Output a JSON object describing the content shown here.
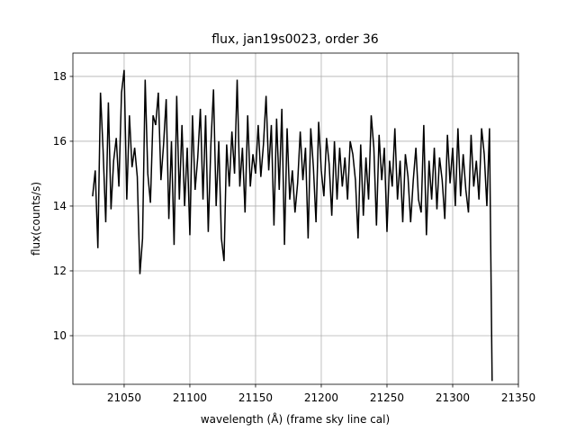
{
  "chart_data": {
    "type": "line",
    "title": "flux, jan19s0023, order 36",
    "xlabel": "wavelength (Å) (frame sky line cal)",
    "ylabel": "flux(counts/s)",
    "color": "#000000",
    "grid": true,
    "xlim": [
      21011,
      21350
    ],
    "ylim": [
      8.5,
      18.72
    ],
    "xticks": [
      21050,
      21100,
      21150,
      21200,
      21250,
      21300,
      21350
    ],
    "yticks": [
      10,
      12,
      14,
      16,
      18
    ],
    "x": [
      21026,
      21028,
      21030,
      21032,
      21034,
      21036,
      21038,
      21040,
      21042,
      21044,
      21046,
      21048,
      21050,
      21052,
      21054,
      21056,
      21058,
      21060,
      21062,
      21064,
      21066,
      21068,
      21070,
      21072,
      21074,
      21076,
      21078,
      21080,
      21082,
      21084,
      21086,
      21088,
      21090,
      21092,
      21094,
      21096,
      21098,
      21100,
      21102,
      21104,
      21106,
      21108,
      21110,
      21112,
      21114,
      21116,
      21118,
      21120,
      21122,
      21124,
      21126,
      21128,
      21130,
      21132,
      21134,
      21136,
      21138,
      21140,
      21142,
      21144,
      21146,
      21148,
      21150,
      21152,
      21154,
      21156,
      21158,
      21160,
      21162,
      21164,
      21166,
      21168,
      21170,
      21172,
      21174,
      21176,
      21178,
      21180,
      21182,
      21184,
      21186,
      21188,
      21190,
      21192,
      21194,
      21196,
      21198,
      21200,
      21202,
      21204,
      21206,
      21208,
      21210,
      21212,
      21214,
      21216,
      21218,
      21220,
      21222,
      21224,
      21226,
      21228,
      21230,
      21232,
      21234,
      21236,
      21238,
      21240,
      21242,
      21244,
      21246,
      21248,
      21250,
      21252,
      21254,
      21256,
      21258,
      21260,
      21262,
      21264,
      21266,
      21268,
      21270,
      21272,
      21274,
      21276,
      21278,
      21280,
      21282,
      21284,
      21286,
      21288,
      21290,
      21292,
      21294,
      21296,
      21298,
      21300,
      21302,
      21304,
      21306,
      21308,
      21310,
      21312,
      21314,
      21316,
      21318,
      21320,
      21322,
      21324,
      21326,
      21328,
      21330
    ],
    "values": [
      14.3,
      15.1,
      12.7,
      17.5,
      15.7,
      13.5,
      17.2,
      13.9,
      15.4,
      16.1,
      14.6,
      17.5,
      18.2,
      14.2,
      16.8,
      15.2,
      15.8,
      14.9,
      11.9,
      13.0,
      17.9,
      15.0,
      14.1,
      16.8,
      16.5,
      17.5,
      14.8,
      15.9,
      17.3,
      13.6,
      16.0,
      12.8,
      17.4,
      14.2,
      16.5,
      14.0,
      15.8,
      13.1,
      16.8,
      14.5,
      15.5,
      17.0,
      14.2,
      16.8,
      13.2,
      15.9,
      17.6,
      14.0,
      16.0,
      13.0,
      12.3,
      15.9,
      14.6,
      16.3,
      15.0,
      17.9,
      14.6,
      15.8,
      13.8,
      16.8,
      14.6,
      15.6,
      15.0,
      16.5,
      14.9,
      15.9,
      17.4,
      15.1,
      16.5,
      13.4,
      16.7,
      14.5,
      17.0,
      12.8,
      16.4,
      14.2,
      15.1,
      13.8,
      14.7,
      16.3,
      14.8,
      15.8,
      13.0,
      16.4,
      15.2,
      13.5,
      16.6,
      15.1,
      14.3,
      16.1,
      15.3,
      13.7,
      16.0,
      14.2,
      15.8,
      14.6,
      15.5,
      14.2,
      16.0,
      15.6,
      14.8,
      13.0,
      15.9,
      13.7,
      15.5,
      14.2,
      16.8,
      15.8,
      13.4,
      16.2,
      14.8,
      15.8,
      13.2,
      15.4,
      14.6,
      16.4,
      14.2,
      15.4,
      13.5,
      15.6,
      14.9,
      13.5,
      14.8,
      15.8,
      14.2,
      13.8,
      16.5,
      13.1,
      15.4,
      14.2,
      15.8,
      13.9,
      15.5,
      14.8,
      13.6,
      16.2,
      14.7,
      15.8,
      14.0,
      16.4,
      14.3,
      15.6,
      14.5,
      13.8,
      16.2,
      14.6,
      15.4,
      14.2,
      16.4,
      15.6,
      14.0,
      16.4,
      8.6
    ]
  }
}
